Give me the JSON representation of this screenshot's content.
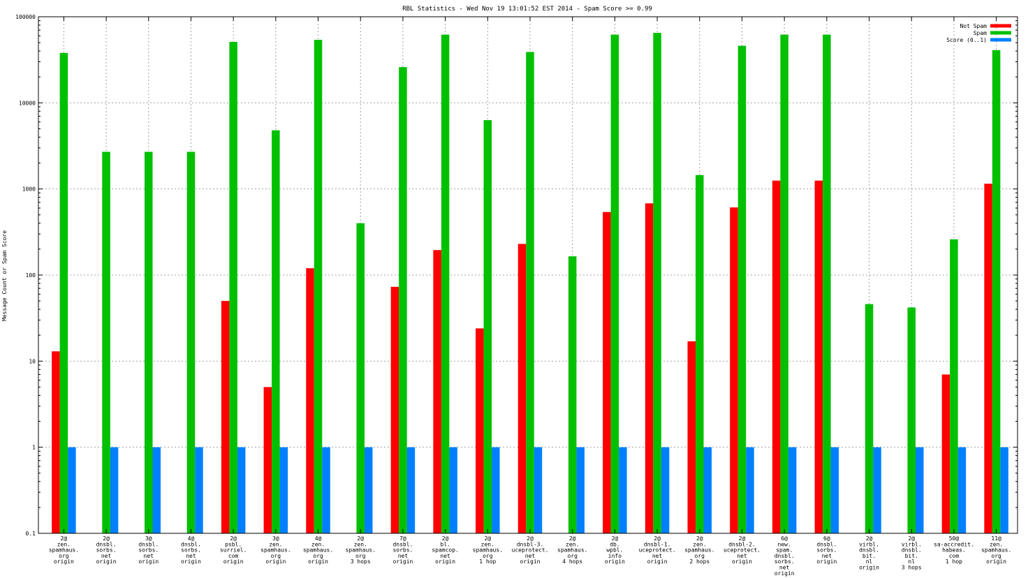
{
  "chart_data": {
    "type": "bar",
    "title": "RBL Statistics - Wed Nov 19 13:01:52 EST 2014 - Spam Score >= 0.99",
    "xlabel": "",
    "ylabel": "Message Count or Spam Score",
    "yscale": "log",
    "ylim": [
      0.1,
      100000
    ],
    "grid": true,
    "legend_position": "top-right",
    "ytick_labels": [
      "0.1",
      "1",
      "10",
      "100",
      "1000",
      "10000",
      "100000"
    ],
    "ytick_values": [
      0.1,
      1,
      10,
      100,
      1000,
      10000,
      100000
    ],
    "categories": [
      [
        "2@",
        "zen.",
        "spamhaus.",
        "org",
        "origin"
      ],
      [
        "2@",
        "dnsbl.",
        "sorbs.",
        "net",
        "origin"
      ],
      [
        "3@",
        "dnsbl.",
        "sorbs.",
        "net",
        "origin"
      ],
      [
        "4@",
        "dnsbl.",
        "sorbs.",
        "net",
        "origin"
      ],
      [
        "2@",
        "psbl.",
        "surriel.",
        "com",
        "origin"
      ],
      [
        "3@",
        "zen.",
        "spamhaus.",
        "org",
        "origin"
      ],
      [
        "4@",
        "zen.",
        "spamhaus.",
        "org",
        "origin"
      ],
      [
        "2@",
        "zen.",
        "spamhaus.",
        "org",
        "3 hops"
      ],
      [
        "7@",
        "dnsbl.",
        "sorbs.",
        "net",
        "origin"
      ],
      [
        "2@",
        "bl.",
        "spamcop.",
        "net",
        "origin"
      ],
      [
        "2@",
        "zen.",
        "spamhaus.",
        "org",
        "1 hop"
      ],
      [
        "2@",
        "dnsbl-3.",
        "uceprotect.",
        "net",
        "origin"
      ],
      [
        "2@",
        "zen.",
        "spamhaus.",
        "org",
        "4 hops"
      ],
      [
        "2@",
        "db.",
        "wpbl.",
        "info",
        "origin"
      ],
      [
        "2@",
        "dnsbl-1.",
        "uceprotect.",
        "net",
        "origin"
      ],
      [
        "2@",
        "zen.",
        "spamhaus.",
        "org",
        "2 hops"
      ],
      [
        "2@",
        "dnsbl-2.",
        "uceprotect.",
        "net",
        "origin"
      ],
      [
        "6@",
        "new.",
        "spam.",
        "dnsbl.",
        "sorbs.",
        "net",
        "origin"
      ],
      [
        "6@",
        "dnsbl.",
        "sorbs.",
        "net",
        "origin"
      ],
      [
        "2@",
        "virbl.",
        "dnsbl.",
        "bit.",
        "nl",
        "origin"
      ],
      [
        "2@",
        "virbl.",
        "dnsbl.",
        "bit.",
        "nl",
        "3 hops"
      ],
      [
        "50@",
        "sa-accredit.",
        "habeas.",
        "com",
        "1 hop"
      ],
      [
        "11@",
        "zen.",
        "spamhaus.",
        "org",
        "origin"
      ]
    ],
    "series": [
      {
        "name": "Not Spam",
        "color": "#ff0000",
        "values": [
          13,
          null,
          null,
          null,
          50,
          5,
          120,
          null,
          73,
          195,
          24,
          230,
          null,
          540,
          680,
          17,
          610,
          1250,
          1250,
          null,
          null,
          7,
          1150
        ]
      },
      {
        "name": "Spam",
        "color": "#00c000",
        "values": [
          38000,
          2700,
          2700,
          2700,
          51000,
          4800,
          54000,
          400,
          26000,
          62000,
          6300,
          39000,
          165,
          62000,
          65000,
          1450,
          46000,
          62000,
          62000,
          46,
          42,
          260,
          41000
        ]
      },
      {
        "name": "Score (0..1)",
        "color": "#0080ff",
        "values": [
          1,
          1,
          1,
          1,
          1,
          1,
          1,
          1,
          1,
          1,
          1,
          1,
          1,
          1,
          1,
          1,
          1,
          1,
          1,
          1,
          1,
          1,
          1
        ]
      }
    ]
  }
}
